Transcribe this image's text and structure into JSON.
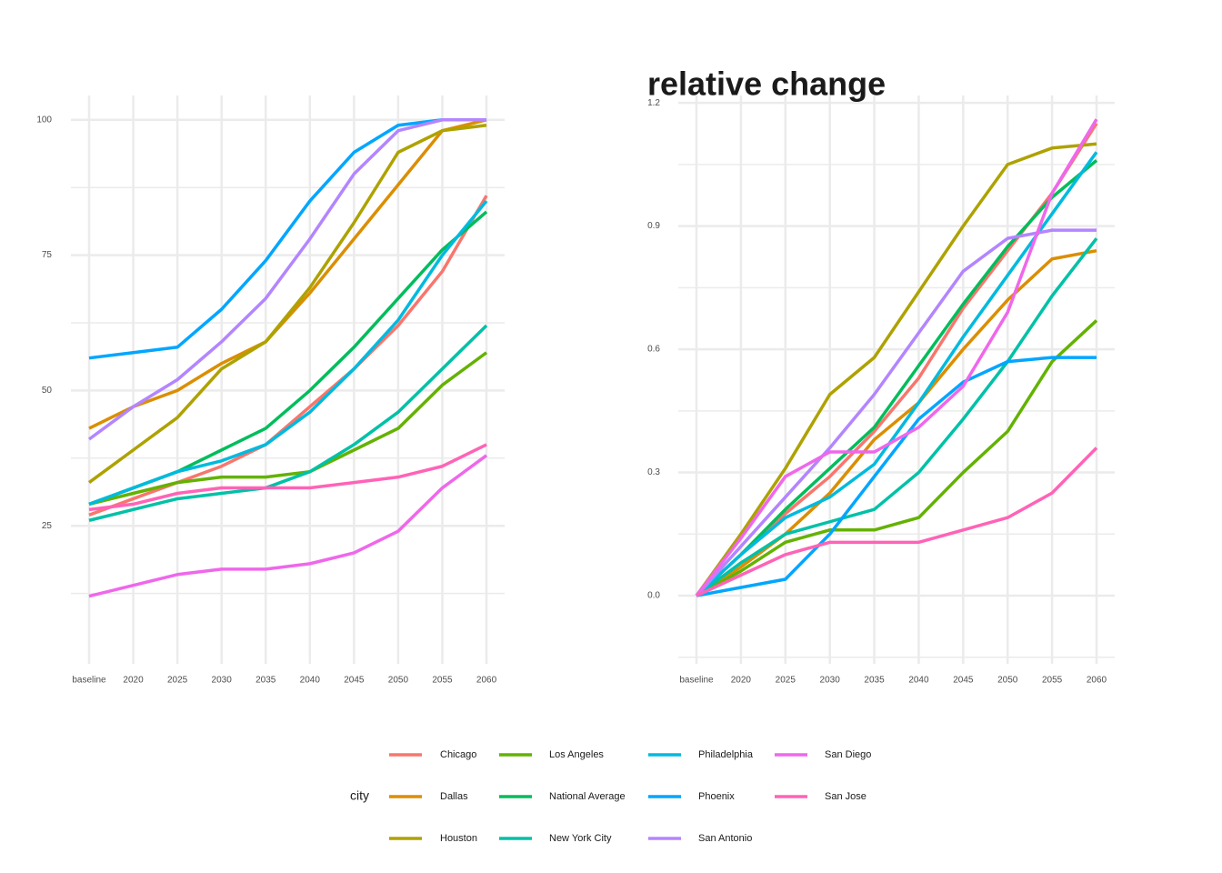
{
  "chart_data": [
    {
      "type": "line",
      "grid": true,
      "legend": "bottom",
      "legend_title": "city",
      "categories": [
        "baseline",
        "2020",
        "2025",
        "2030",
        "2035",
        "2040",
        "2045",
        "2050",
        "2055",
        "2060"
      ],
      "ylim": [
        -0.5,
        104.5
      ],
      "yticks": [
        25,
        50,
        75,
        100
      ],
      "series": [
        {
          "name": "Chicago",
          "color": "#F8766D",
          "values": [
            27,
            30,
            33,
            36,
            40,
            47,
            54,
            62,
            72,
            86
          ]
        },
        {
          "name": "Dallas",
          "color": "#DB8E00",
          "values": [
            43,
            47,
            50,
            55,
            59,
            68,
            78,
            88,
            98,
            100
          ]
        },
        {
          "name": "Houston",
          "color": "#AEA200",
          "values": [
            33,
            39,
            45,
            54,
            59,
            69,
            81,
            94,
            98,
            99
          ]
        },
        {
          "name": "Los Angeles",
          "color": "#64B200",
          "values": [
            29,
            31,
            33,
            34,
            34,
            35,
            39,
            43,
            51,
            57
          ]
        },
        {
          "name": "National Average",
          "color": "#00BD5C",
          "values": [
            29,
            32,
            35,
            39,
            43,
            50,
            58,
            67,
            76,
            83
          ]
        },
        {
          "name": "New York City",
          "color": "#00C1A7",
          "values": [
            26,
            28,
            30,
            31,
            32,
            35,
            40,
            46,
            54,
            62
          ]
        },
        {
          "name": "Philadelphia",
          "color": "#00BADE",
          "values": [
            29,
            32,
            35,
            37,
            40,
            46,
            54,
            63,
            75,
            85
          ]
        },
        {
          "name": "Phoenix",
          "color": "#00A6FF",
          "values": [
            56,
            57,
            58,
            65,
            74,
            85,
            94,
            99,
            100,
            100
          ]
        },
        {
          "name": "San Antonio",
          "color": "#B385FF",
          "values": [
            41,
            47,
            52,
            59,
            67,
            78,
            90,
            98,
            100,
            100
          ]
        },
        {
          "name": "San Diego",
          "color": "#EF67EB",
          "values": [
            12,
            14,
            16,
            17,
            17,
            18,
            20,
            24,
            32,
            38
          ]
        },
        {
          "name": "San Jose",
          "color": "#FF63B6",
          "values": [
            28,
            29,
            31,
            32,
            32,
            32,
            33,
            34,
            36,
            40
          ]
        }
      ]
    },
    {
      "type": "line",
      "grid": true,
      "title": "relative change",
      "categories": [
        "baseline",
        "2020",
        "2025",
        "2030",
        "2035",
        "2040",
        "2045",
        "2050",
        "2055",
        "2060"
      ],
      "ylim": [
        -0.166,
        1.218
      ],
      "yticks": [
        {
          "value": 0,
          "label": "0.0"
        },
        0.3,
        0.6,
        0.9,
        1.2
      ],
      "series": [
        {
          "name": "Chicago",
          "color": "#F8766D",
          "values": [
            0,
            0.1,
            0.2,
            0.29,
            0.4,
            0.53,
            0.7,
            0.84,
            0.98,
            1.15
          ]
        },
        {
          "name": "Dallas",
          "color": "#DB8E00",
          "values": [
            0,
            0.07,
            0.15,
            0.25,
            0.38,
            0.47,
            0.6,
            0.72,
            0.82,
            0.84
          ]
        },
        {
          "name": "Houston",
          "color": "#AEA200",
          "values": [
            0,
            0.15,
            0.31,
            0.49,
            0.58,
            0.74,
            0.9,
            1.05,
            1.09,
            1.1
          ]
        },
        {
          "name": "Los Angeles",
          "color": "#64B200",
          "values": [
            0,
            0.06,
            0.13,
            0.16,
            0.16,
            0.19,
            0.3,
            0.4,
            0.57,
            0.67
          ]
        },
        {
          "name": "National Average",
          "color": "#00BD5C",
          "values": [
            0,
            0.1,
            0.21,
            0.31,
            0.41,
            0.56,
            0.71,
            0.85,
            0.97,
            1.06
          ]
        },
        {
          "name": "New York City",
          "color": "#00C1A7",
          "values": [
            0,
            0.08,
            0.15,
            0.18,
            0.21,
            0.3,
            0.43,
            0.57,
            0.73,
            0.87
          ]
        },
        {
          "name": "Philadelphia",
          "color": "#00BADE",
          "values": [
            0,
            0.1,
            0.19,
            0.24,
            0.32,
            0.47,
            0.63,
            0.78,
            0.93,
            1.08
          ]
        },
        {
          "name": "Phoenix",
          "color": "#00A6FF",
          "values": [
            0,
            0.02,
            0.04,
            0.15,
            0.29,
            0.43,
            0.52,
            0.57,
            0.58,
            0.58
          ]
        },
        {
          "name": "San Antonio",
          "color": "#B385FF",
          "values": [
            0,
            0.12,
            0.24,
            0.36,
            0.49,
            0.64,
            0.79,
            0.87,
            0.89,
            0.89
          ]
        },
        {
          "name": "San Diego",
          "color": "#EF67EB",
          "values": [
            0,
            0.14,
            0.29,
            0.35,
            0.35,
            0.41,
            0.51,
            0.69,
            0.98,
            1.16
          ]
        },
        {
          "name": "San Jose",
          "color": "#FF63B6",
          "values": [
            0,
            0.05,
            0.1,
            0.13,
            0.13,
            0.13,
            0.16,
            0.19,
            0.25,
            0.36
          ]
        }
      ]
    }
  ]
}
